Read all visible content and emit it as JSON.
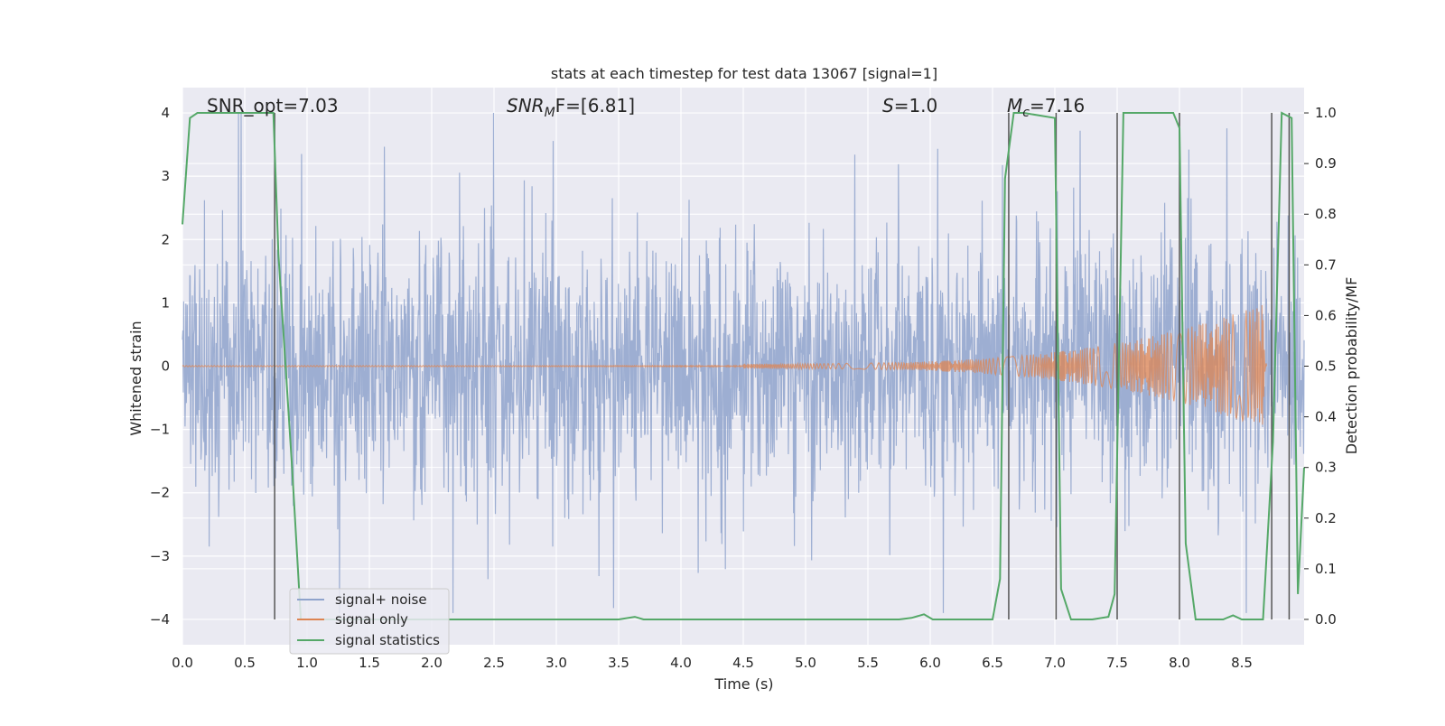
{
  "chart_data": {
    "type": "line",
    "title": "stats at each timestep for test data 13067 [signal=1]",
    "xlabel": "Time (s)",
    "ylabel_left": "Whitened strain",
    "ylabel_right": "Detection probability/MF",
    "xlim": [
      0.0,
      9.0
    ],
    "ylim_left": [
      -4.4,
      4.4
    ],
    "ylim_right": [
      -0.05,
      1.05
    ],
    "xticks": [
      "0.0",
      "0.5",
      "1.0",
      "1.5",
      "2.0",
      "2.5",
      "3.0",
      "3.5",
      "4.0",
      "4.5",
      "5.0",
      "5.5",
      "6.0",
      "6.5",
      "7.0",
      "7.5",
      "8.0",
      "8.5"
    ],
    "yticks_left": [
      "4",
      "3",
      "2",
      "1",
      "0",
      "−1",
      "−2",
      "−3",
      "−4"
    ],
    "yticks_right": [
      "1.0",
      "0.9",
      "0.8",
      "0.7",
      "0.6",
      "0.5",
      "0.4",
      "0.3",
      "0.2",
      "0.1",
      "0.0"
    ],
    "grid": true,
    "annotations": {
      "snr_opt": "SNR_opt=7.03",
      "snr_mf_main": "SNR",
      "snr_mf_sub": "M",
      "snr_mf_rest": "F=[6.81]",
      "s_main": "S",
      "s_rest": "=1.0",
      "mc_main": "M",
      "mc_sub": "c",
      "mc_rest": "=7.16"
    },
    "legend": {
      "placement": "lower-left",
      "entries": [
        "signal+ noise",
        "signal only",
        "signal statistics"
      ]
    },
    "colors": {
      "noise": "#8fa3cc",
      "signal": "#dd8452",
      "stats": "#55a868",
      "vlines": "#555555",
      "background": "#eaeaf2",
      "grid": "#ffffff"
    },
    "series": [
      {
        "name": "signal+ noise",
        "axis": "left",
        "description_envelope": {
          "typical_amplitude": 1.6,
          "peak_max": 4.0,
          "peak_min": -3.9
        }
      },
      {
        "name": "signal only",
        "axis": "left",
        "chirp": {
          "start_time": 4.5,
          "end_time": 8.7,
          "start_amplitude": 0.04,
          "end_amplitude": 1.0
        }
      },
      {
        "name": "signal statistics",
        "axis": "right",
        "x": [
          0.0,
          0.06,
          0.12,
          0.5,
          0.73,
          0.77,
          0.88,
          0.95,
          3.5,
          3.63,
          3.7,
          5.5,
          5.75,
          5.85,
          5.95,
          6.02,
          6.5,
          6.56,
          6.6,
          6.67,
          6.75,
          7.0,
          7.05,
          7.13,
          7.3,
          7.43,
          7.48,
          7.55,
          7.63,
          7.75,
          7.95,
          8.0,
          8.05,
          8.13,
          8.35,
          8.43,
          8.5,
          8.67,
          8.75,
          8.82,
          8.9,
          8.95,
          9.0
        ],
        "values": [
          0.78,
          0.99,
          1.0,
          1.0,
          1.0,
          0.72,
          0.3,
          0.0,
          0.0,
          0.005,
          0.0,
          0.0,
          0.0,
          0.003,
          0.01,
          0.0,
          0.0,
          0.08,
          0.87,
          1.0,
          1.0,
          0.99,
          0.06,
          0.0,
          0.0,
          0.005,
          0.05,
          1.0,
          1.0,
          1.0,
          1.0,
          0.97,
          0.15,
          0.0,
          0.0,
          0.008,
          0.0,
          0.0,
          0.35,
          1.0,
          0.99,
          0.05,
          0.3
        ]
      }
    ],
    "vertical_lines_at": [
      0.74,
      6.63,
      7.01,
      7.5,
      8.0,
      8.74,
      8.88
    ]
  }
}
